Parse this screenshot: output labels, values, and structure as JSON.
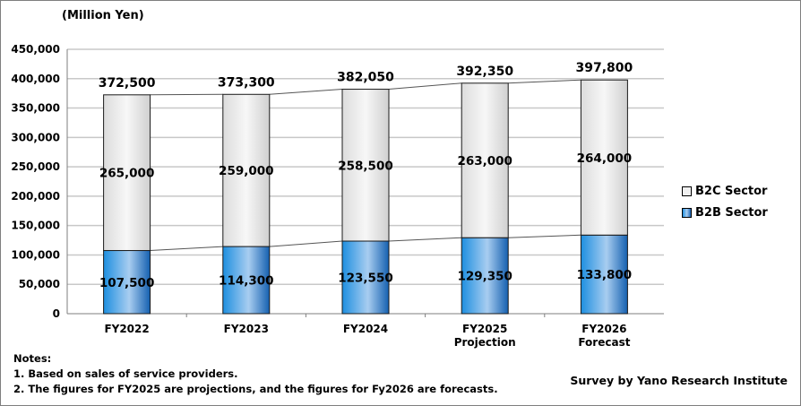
{
  "chart_data": {
    "type": "bar",
    "stacked": true,
    "unit_label": "(Million Yen)",
    "categories": [
      [
        "FY2022"
      ],
      [
        "FY2023"
      ],
      [
        "FY2024"
      ],
      [
        "FY2025",
        "Projection"
      ],
      [
        "FY2026",
        "Forecast"
      ]
    ],
    "series": [
      {
        "name": "B2B Sector",
        "values": [
          107500,
          114300,
          123550,
          129350,
          133800
        ],
        "labels": [
          "107,500",
          "114,300",
          "123,550",
          "129,350",
          "133,800"
        ],
        "color": "#3a9ee0"
      },
      {
        "name": "B2C Sector",
        "values": [
          265000,
          259000,
          258500,
          263000,
          264000
        ],
        "labels": [
          "265,000",
          "259,000",
          "258,500",
          "263,000",
          "264,000"
        ],
        "color": "#e6e6e6"
      }
    ],
    "totals": [
      372500,
      373300,
      382050,
      392350,
      397800
    ],
    "total_labels": [
      "372,500",
      "373,300",
      "382,050",
      "392,350",
      "397,800"
    ],
    "ylim": [
      0,
      450000
    ],
    "yticks": [
      0,
      50000,
      100000,
      150000,
      200000,
      250000,
      300000,
      350000,
      400000,
      450000
    ],
    "ytick_labels": [
      "0",
      "50,000",
      "100,000",
      "150,000",
      "200,000",
      "250,000",
      "300,000",
      "350,000",
      "400,000",
      "450,000"
    ],
    "grid": true,
    "legend_position": "right",
    "legend": [
      "B2C Sector",
      "B2B Sector"
    ]
  },
  "notes": {
    "title": "Notes:",
    "items": [
      "1. Based on sales of service providers.",
      "2. The figures for FY2025 are projections, and the figures for Fy2026 are forecasts."
    ]
  },
  "credit": "Survey by Yano Research Institute"
}
